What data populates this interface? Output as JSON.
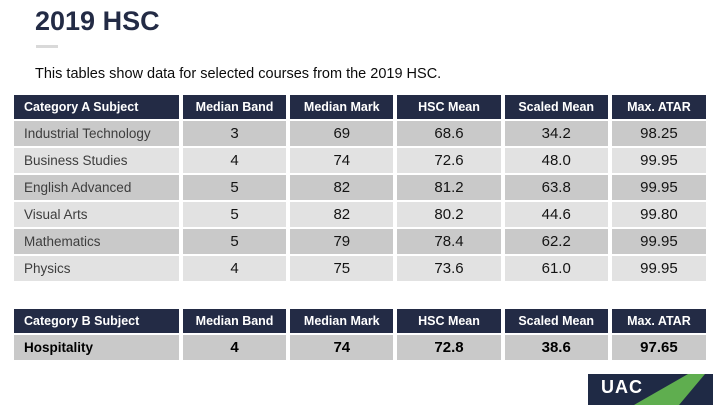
{
  "slide": {
    "title": "2019 HSC",
    "subtitle": "This tables show data for selected courses from the 2019 HSC."
  },
  "colors": {
    "header_navy": "#232B45",
    "row_dark_gray": "#C9C9C9",
    "row_light_gray": "#E2E2E2",
    "title_navy": "#232B45",
    "logo_navy": "#1F2A45",
    "logo_green": "#5FAE4F"
  },
  "table_a": {
    "headers": [
      "Category A Subject",
      "Median Band",
      "Median Mark",
      "HSC Mean",
      "Scaled Mean",
      "Max. ATAR"
    ],
    "rows": [
      {
        "subject": "Industrial Technology",
        "values": [
          "3",
          "69",
          "68.6",
          "34.2",
          "98.25"
        ]
      },
      {
        "subject": "Business Studies",
        "values": [
          "4",
          "74",
          "72.6",
          "48.0",
          "99.95"
        ]
      },
      {
        "subject": "English Advanced",
        "values": [
          "5",
          "82",
          "81.2",
          "63.8",
          "99.95"
        ]
      },
      {
        "subject": "Visual Arts",
        "values": [
          "5",
          "82",
          "80.2",
          "44.6",
          "99.80"
        ]
      },
      {
        "subject": "Mathematics",
        "values": [
          "5",
          "79",
          "78.4",
          "62.2",
          "99.95"
        ]
      },
      {
        "subject": "Physics",
        "values": [
          "4",
          "75",
          "73.6",
          "61.0",
          "99.95"
        ]
      }
    ]
  },
  "table_b": {
    "headers": [
      "Category B Subject",
      "Median Band",
      "Median Mark",
      "HSC Mean",
      "Scaled Mean",
      "Max. ATAR"
    ],
    "rows": [
      {
        "subject": "Hospitality",
        "values": [
          "4",
          "74",
          "72.8",
          "38.6",
          "97.65"
        ]
      }
    ]
  },
  "logo": {
    "text": "UAC"
  }
}
